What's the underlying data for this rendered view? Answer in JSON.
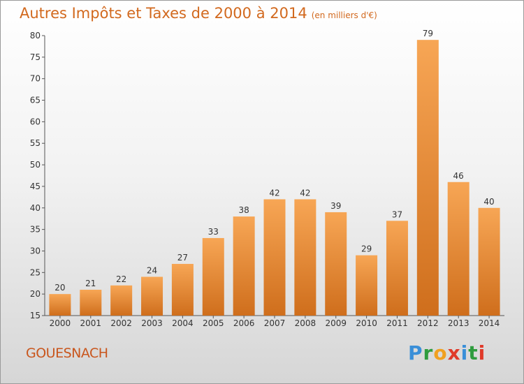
{
  "title": "Autres Impôts et Taxes de 2000 à 2014",
  "subtitle": "(en milliers d'€)",
  "commune": "GOUESNACH",
  "logo": {
    "letters": [
      "P",
      "r",
      "o",
      "x",
      "i",
      "t",
      "i"
    ],
    "colors": [
      "#3a8fd8",
      "#2f9c3e",
      "#f0a020",
      "#e03a2a",
      "#3a8fd8",
      "#2f9c3e",
      "#e03a2a"
    ]
  },
  "colors": {
    "title": "#d2691e",
    "bar_light": "#f7a655",
    "bar_dark": "#cf6e1c"
  },
  "chart_data": {
    "type": "bar",
    "categories": [
      "2000",
      "2001",
      "2002",
      "2003",
      "2004",
      "2005",
      "2006",
      "2007",
      "2008",
      "2009",
      "2010",
      "2011",
      "2012",
      "2013",
      "2014"
    ],
    "values": [
      20,
      21,
      22,
      24,
      27,
      33,
      38,
      42,
      42,
      39,
      29,
      37,
      79,
      46,
      40
    ],
    "ylim": [
      15,
      80
    ],
    "yticks": [
      15,
      20,
      25,
      30,
      35,
      40,
      45,
      50,
      55,
      60,
      65,
      70,
      75,
      80
    ],
    "grid": false,
    "title": "Autres Impôts et Taxes de 2000 à 2014",
    "subtitle": "(en milliers d'€)",
    "xlabel": "",
    "ylabel": ""
  }
}
